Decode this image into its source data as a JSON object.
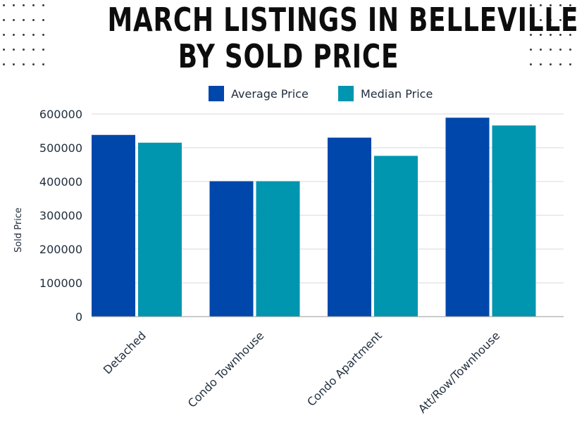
{
  "title_lines": [
    "MARCH LISTINGS IN BELLEVILLE",
    "BY SOLD PRICE"
  ],
  "colors": {
    "average": "#0047ab",
    "median": "#0096b0",
    "grid": "#d9d9d9",
    "axis": "#1f2d3d"
  },
  "chart_data": {
    "type": "bar",
    "title": "MARCH LISTINGS IN BELLEVILLE BY SOLD PRICE",
    "categories": [
      "Detached",
      "Condo Townhouse",
      "Condo Apartment",
      "Att/Row/Townhouse"
    ],
    "series": [
      {
        "name": "Average Price",
        "values": [
          538000,
          401000,
          530000,
          589000
        ]
      },
      {
        "name": "Median Price",
        "values": [
          515000,
          401000,
          476000,
          566000
        ]
      }
    ],
    "xlabel": "",
    "ylabel": "Sold Price",
    "ylim": [
      0,
      600000
    ],
    "yticks": [
      "0",
      "100000",
      "200000",
      "300000",
      "400000",
      "500000",
      "600000"
    ],
    "grid": true,
    "legend": "top"
  }
}
